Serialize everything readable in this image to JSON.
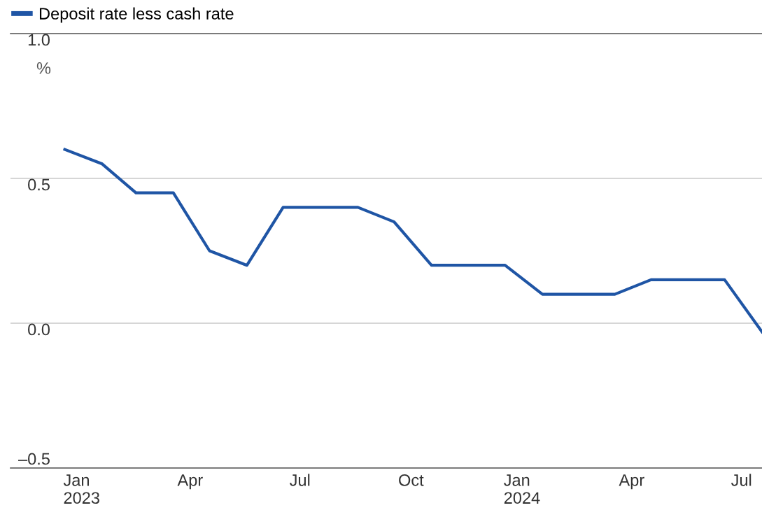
{
  "chart_data": {
    "type": "line",
    "ylabel": "%",
    "legend": "top left",
    "grid": "y",
    "marker": "none",
    "line_style": "solid",
    "x": [
      "2023-01",
      "2023-02",
      "2023-03",
      "2023-04",
      "2023-05",
      "2023-06",
      "2023-07",
      "2023-08",
      "2023-09",
      "2023-10",
      "2023-11",
      "2023-12",
      "2024-01",
      "2024-02",
      "2024-03",
      "2024-04",
      "2024-05",
      "2024-06",
      "2024-07",
      "2024-08"
    ],
    "series": [
      {
        "name": "Deposit rate less cash rate",
        "color": "#1f55a5",
        "values": [
          0.6,
          0.55,
          0.45,
          0.45,
          0.25,
          0.2,
          0.4,
          0.4,
          0.4,
          0.35,
          0.2,
          0.2,
          0.2,
          0.1,
          0.1,
          0.1,
          0.15,
          0.15,
          0.15,
          -0.03
        ]
      }
    ],
    "xlim": [
      "2022-11-17",
      "2024-08-01"
    ],
    "xticks": [
      {
        "value": "2023-01-15",
        "label": "Jan\n2023"
      },
      {
        "value": "2023-04-15",
        "label": "Apr"
      },
      {
        "value": "2023-07-15",
        "label": "Jul"
      },
      {
        "value": "2023-10-15",
        "label": "Oct"
      },
      {
        "value": "2024-01-15",
        "label": "Jan\n2024"
      },
      {
        "value": "2024-04-15",
        "label": "Apr"
      },
      {
        "value": "2024-07-15",
        "label": "Jul"
      }
    ],
    "ylim": [
      -0.5,
      1.0
    ],
    "yticks": [
      {
        "value": -0.5,
        "label": "–0.5"
      },
      {
        "value": 0.0,
        "label": "0.0"
      },
      {
        "value": 0.5,
        "label": "0.5"
      },
      {
        "value": 1.0,
        "label": "1.0"
      }
    ]
  }
}
